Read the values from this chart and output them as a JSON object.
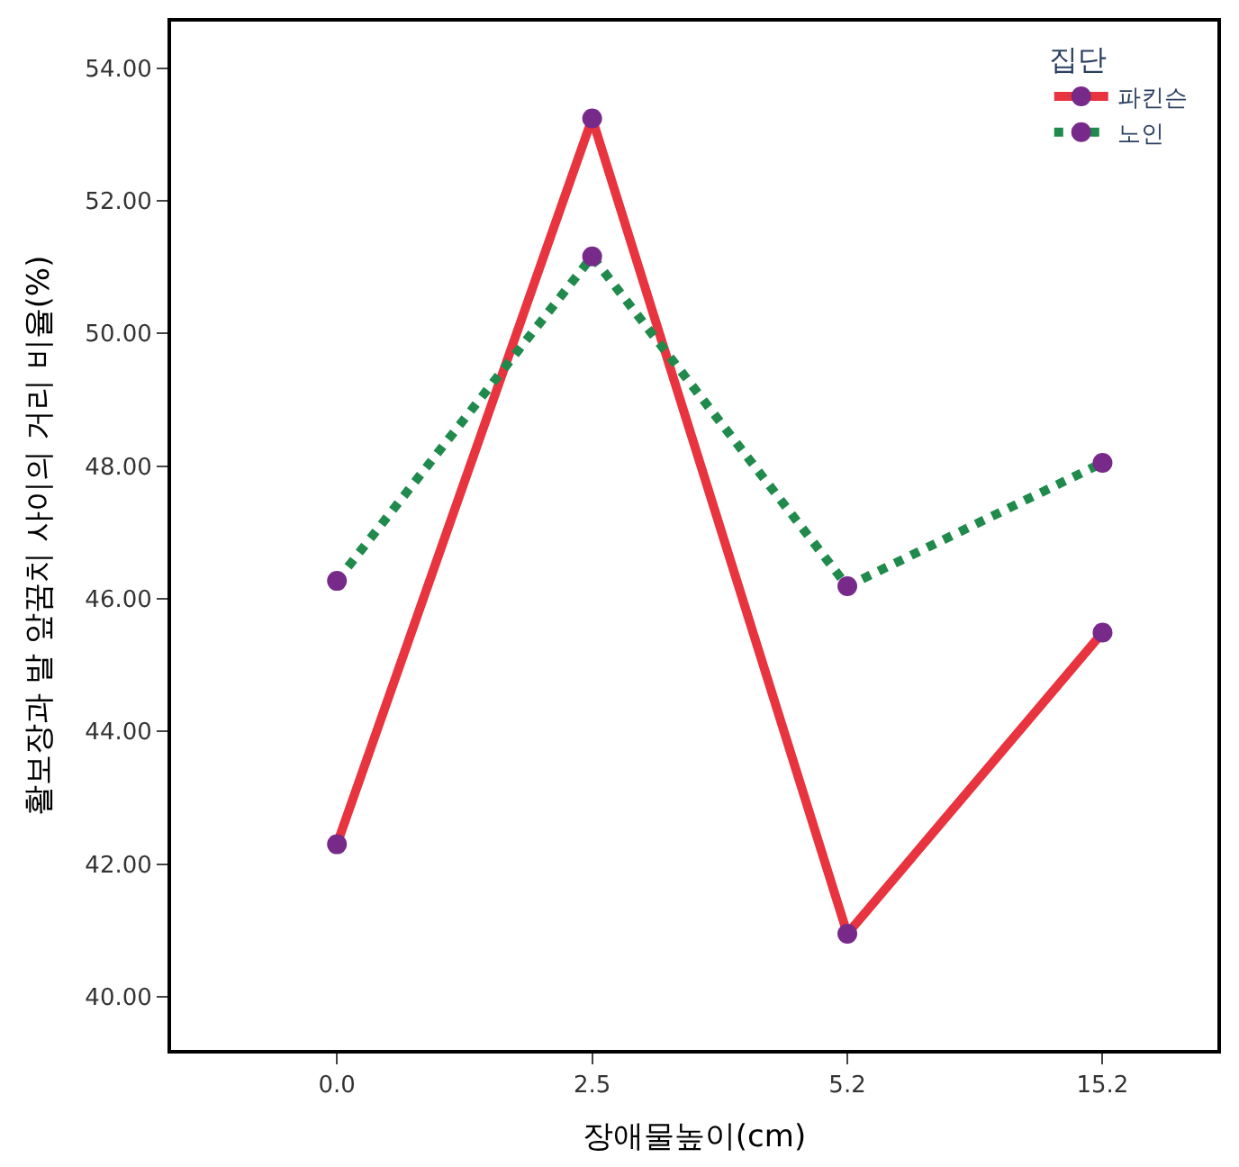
{
  "chart_data": {
    "type": "line",
    "xlabel": "장애물높이(cm)",
    "ylabel": "활보장과 발 앞꿈치 사이의 거리 비율(%)",
    "legend_title": "집단",
    "categories": [
      "0.0",
      "2.5",
      "5.2",
      "15.2"
    ],
    "series": [
      {
        "name": "파킨슨",
        "color": "#e8343f",
        "line_style": "solid",
        "colors": [
          "#772a8a",
          "#772a8a",
          "#772a8a",
          "#772a8a"
        ],
        "values": [
          42.3,
          53.24,
          40.95,
          45.49
        ]
      },
      {
        "name": "노인",
        "color": "#1f8a4c",
        "line_style": "dotted",
        "colors": [
          "#772a8a",
          "#772a8a",
          "#772a8a",
          "#772a8a"
        ],
        "values": [
          46.27,
          51.16,
          46.19,
          48.05
        ]
      }
    ],
    "ylim": [
      39.2,
      54.7
    ],
    "yticks": [
      {
        "value": 40,
        "label": "40.00"
      },
      {
        "value": 42,
        "label": "42.00"
      },
      {
        "value": 44,
        "label": "44.00"
      },
      {
        "value": 46,
        "label": "46.00"
      },
      {
        "value": 48,
        "label": "48.00"
      },
      {
        "value": 50,
        "label": "50.00"
      },
      {
        "value": 52,
        "label": "52.00"
      },
      {
        "value": 54,
        "label": "54.00"
      }
    ],
    "marker": "circle",
    "legend": "top right"
  }
}
